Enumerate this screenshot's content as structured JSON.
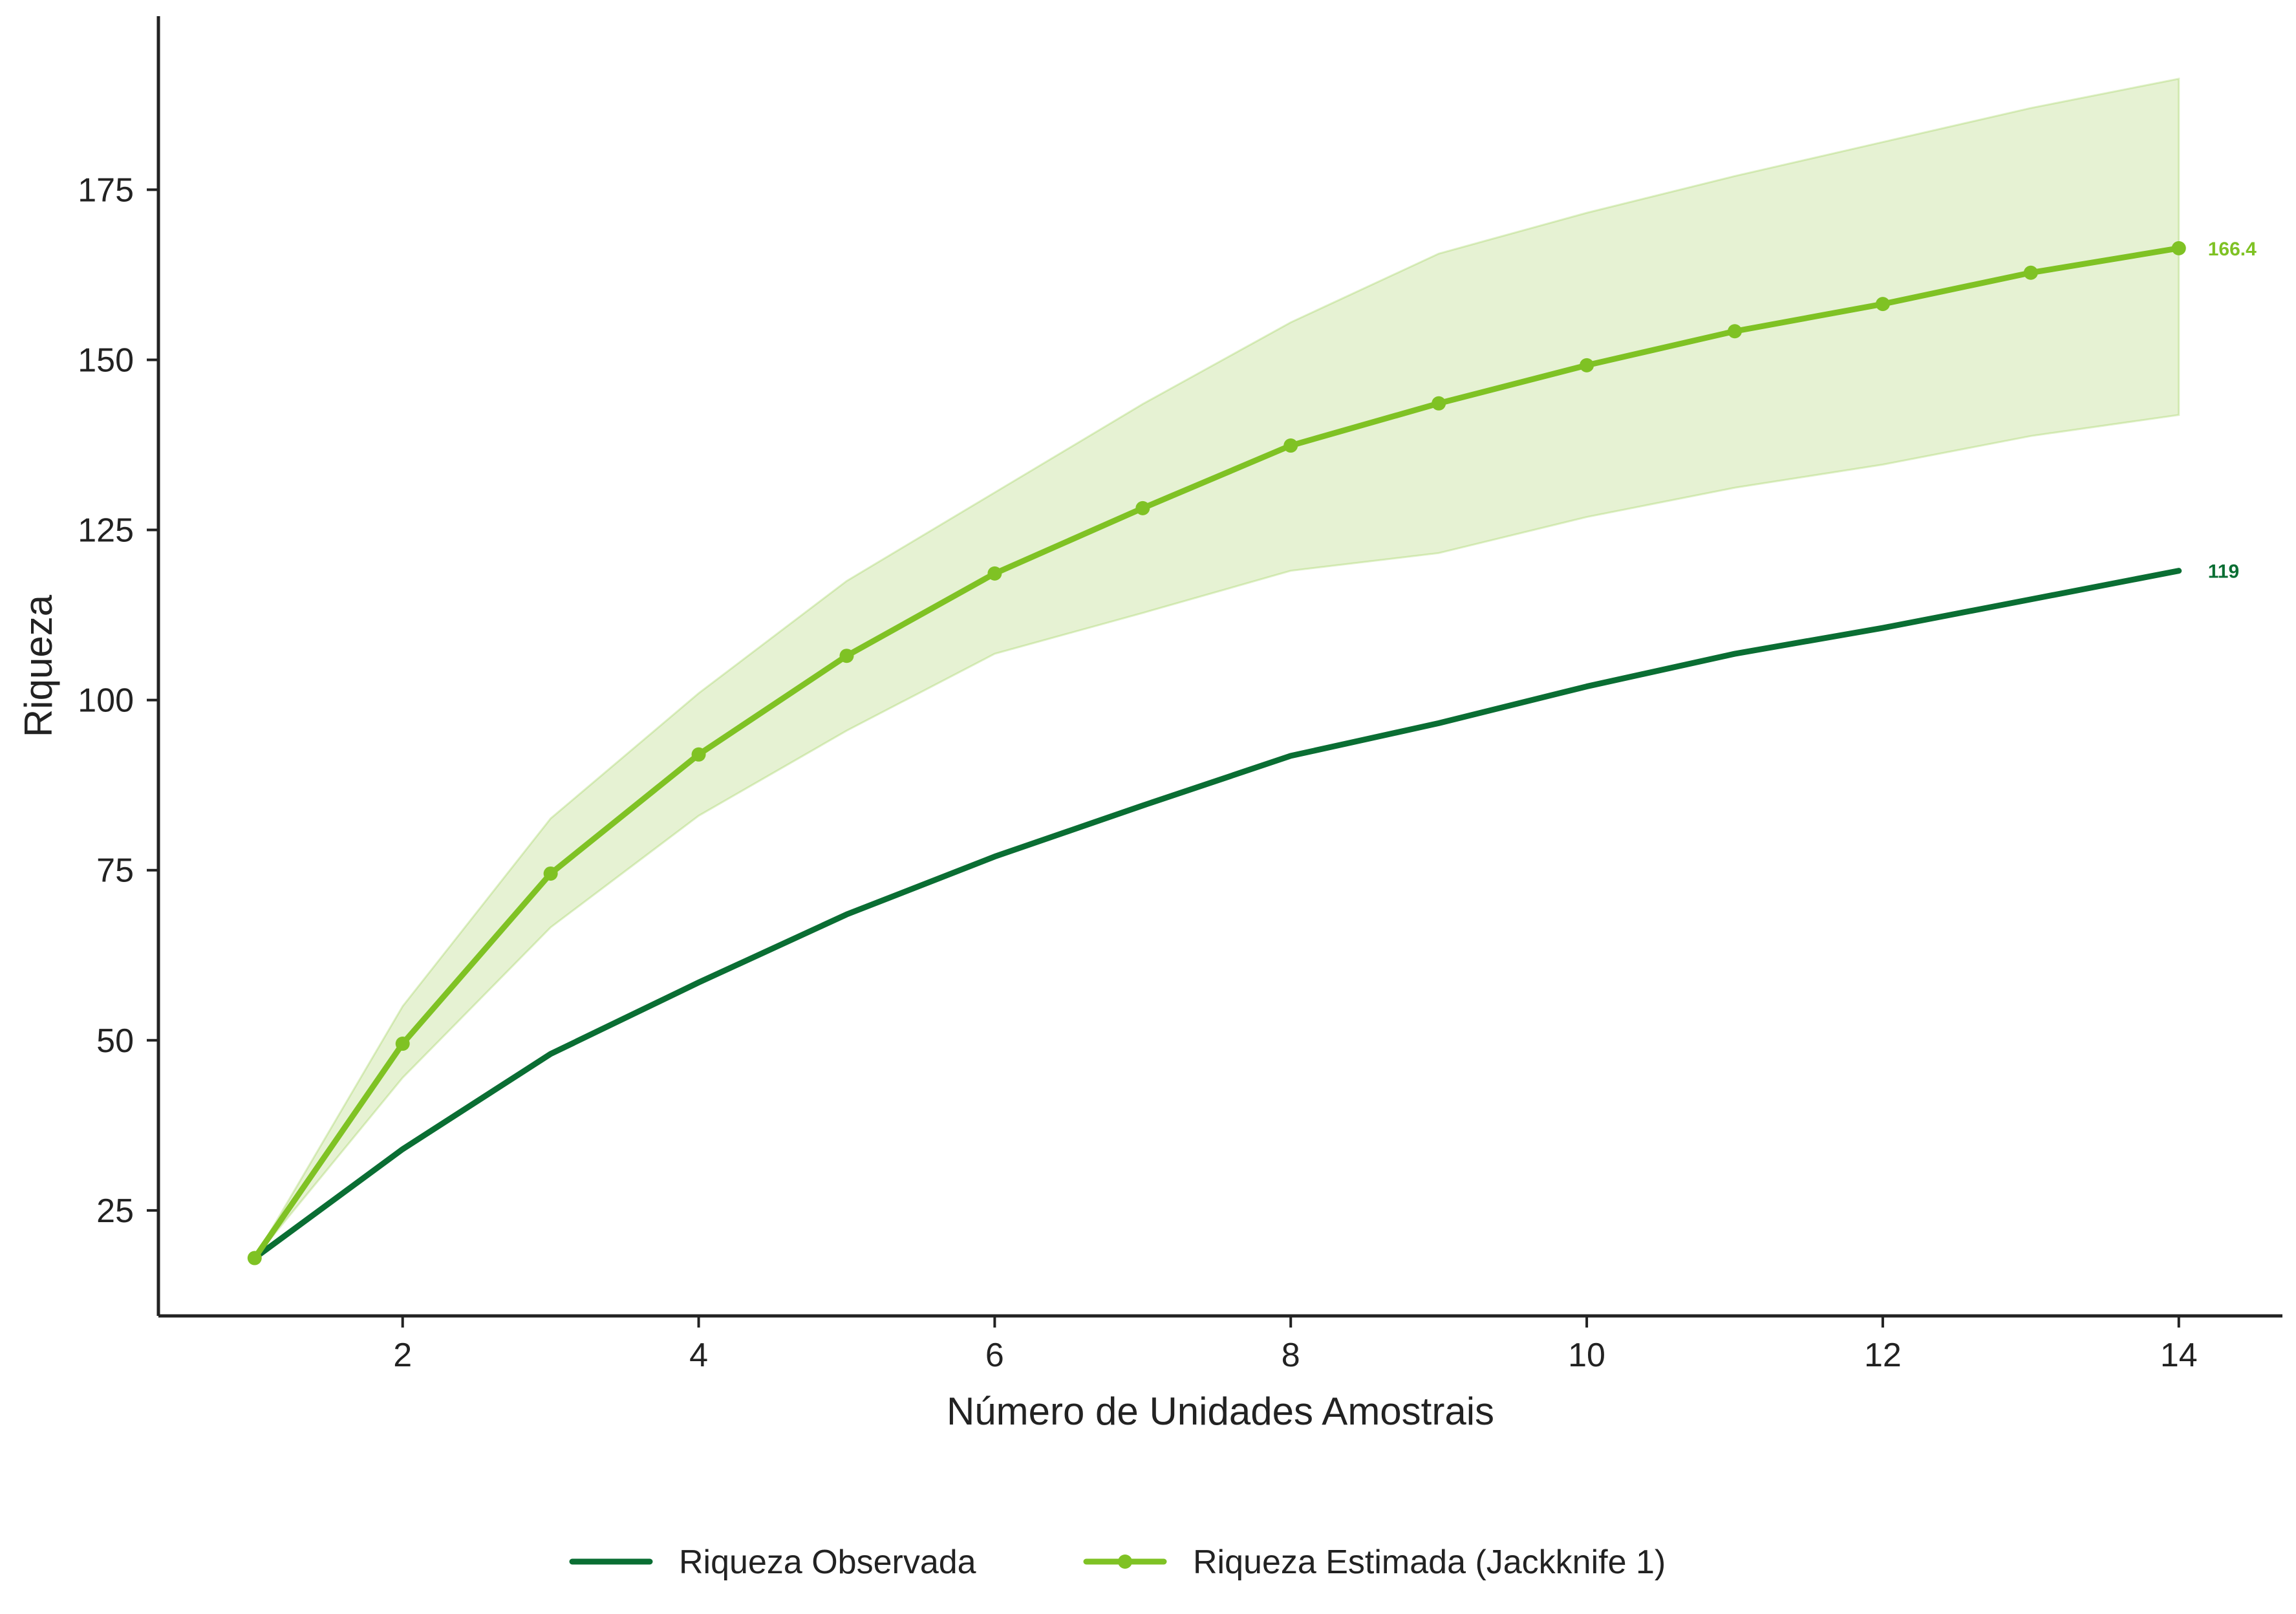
{
  "chart_data": {
    "type": "line",
    "title": "",
    "xlabel": "Número de Unidades Amostrais",
    "ylabel": "Riqueza",
    "x": [
      1,
      2,
      3,
      4,
      5,
      6,
      7,
      8,
      9,
      10,
      11,
      12,
      13,
      14
    ],
    "xlim": [
      0.35,
      14.7
    ],
    "ylim": [
      9.5,
      200.5
    ],
    "xticks": [
      2,
      4,
      6,
      8,
      10,
      12,
      14
    ],
    "yticks": [
      25,
      50,
      75,
      100,
      125,
      150,
      175
    ],
    "grid": false,
    "legend_position": "bottom-center",
    "series": [
      {
        "name": "Riqueza Observada",
        "color": "#0a6e33",
        "marker": "none",
        "values": [
          18,
          34,
          48,
          58.5,
          68.5,
          77,
          84.5,
          91.8,
          96.6,
          102,
          106.8,
          110.6,
          114.8,
          119
        ],
        "end_label": "119"
      },
      {
        "name": "Riqueza Estimada (Jackknife 1)",
        "color": "#7fc224",
        "marker": "circle",
        "values": [
          18,
          49.5,
          74.5,
          92,
          106.5,
          118.6,
          128.2,
          137.4,
          143.6,
          149.2,
          154.2,
          158.2,
          162.8,
          166.4
        ],
        "band_upper": [
          18,
          55,
          82.6,
          101,
          117.5,
          130.5,
          143.5,
          155.5,
          165.6,
          171.6,
          177,
          182,
          187,
          191.3
        ],
        "band_lower": [
          18,
          44.5,
          66.6,
          83,
          95.5,
          106.8,
          112.8,
          119,
          121.6,
          126.9,
          131.2,
          134.6,
          138.8,
          141.9
        ],
        "band_color": "#e6f2d3",
        "end_label": "166.4"
      }
    ]
  }
}
